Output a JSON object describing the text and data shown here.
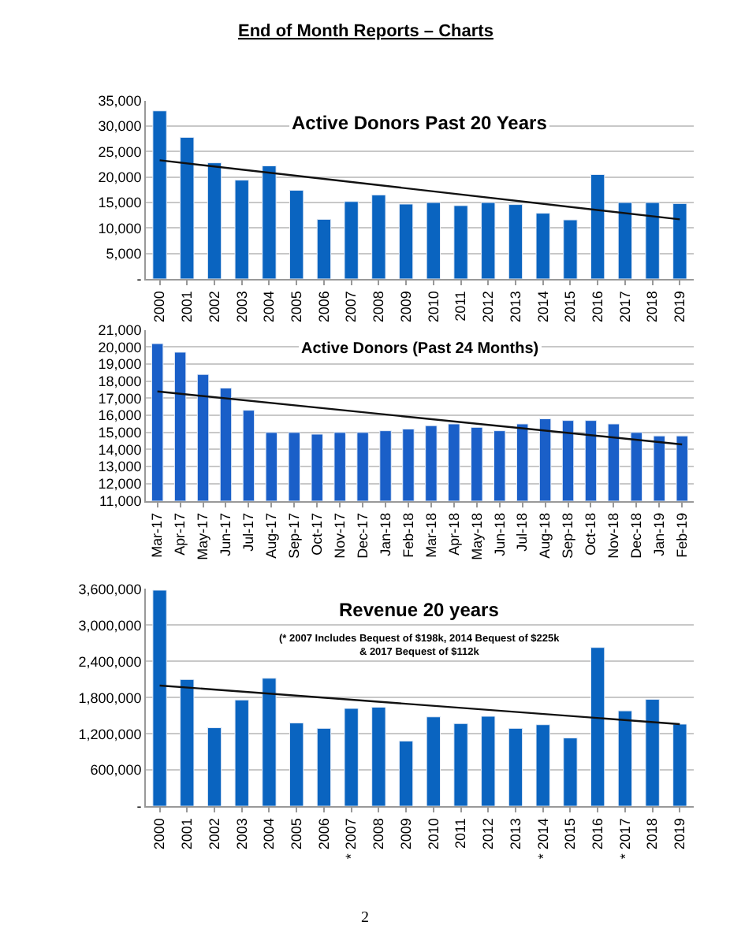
{
  "chart_data": [
    {
      "type": "bar",
      "title": "Active Donors Past 20 Years",
      "annotations": [
        "End of Month Reports – Charts"
      ],
      "categories": [
        "2000",
        "2001",
        "2002",
        "2003",
        "2004",
        "2005",
        "2006",
        "2007",
        "2008",
        "2009",
        "2010",
        "2011",
        "2012",
        "2013",
        "2014",
        "2015",
        "2016",
        "2017",
        "2018",
        "2019"
      ],
      "series": [
        {
          "color": "#0a64c0",
          "values": [
            33000,
            27800,
            22800,
            19400,
            22200,
            17400,
            11700,
            15200,
            16500,
            14700,
            15000,
            14400,
            15000,
            14600,
            12900,
            11600,
            20500,
            15000,
            15000,
            14800
          ]
        },
        {
          "type": "line",
          "color": "#111111",
          "values": [
            23300,
            null,
            null,
            null,
            null,
            null,
            null,
            null,
            null,
            null,
            null,
            null,
            null,
            null,
            null,
            null,
            null,
            null,
            null,
            11700
          ]
        }
      ],
      "ylim": [
        0,
        35000
      ],
      "yticks": [
        {
          "value": 0,
          "label": "-"
        },
        {
          "value": 5000,
          "label": "5,000"
        },
        {
          "value": 10000,
          "label": "10,000"
        },
        {
          "value": 15000,
          "label": "15,000"
        },
        {
          "value": 20000,
          "label": "20,000"
        },
        {
          "value": 25000,
          "label": "25,000"
        },
        {
          "value": 30000,
          "label": "30,000"
        },
        {
          "value": 35000,
          "label": "35,000"
        }
      ],
      "grid": "y"
    },
    {
      "type": "bar",
      "title": "Active Donors (Past 24 Months)",
      "categories": [
        "Mar-17",
        "Apr-17",
        "May-17",
        "Jun-17",
        "Jul-17",
        "Aug-17",
        "Sep-17",
        "Oct-17",
        "Nov-17",
        "Dec-17",
        "Jan-18",
        "Feb-18",
        "Mar-18",
        "Apr-18",
        "May-18",
        "Jun-18",
        "Jul-18",
        "Aug-18",
        "Sep-18",
        "Oct-18",
        "Nov-18",
        "Dec-18",
        "Jan-19",
        "Feb-19"
      ],
      "series": [
        {
          "color": "#1a5fc8",
          "values": [
            20200,
            19700,
            18400,
            17600,
            16300,
            15000,
            15000,
            14900,
            15000,
            15000,
            15100,
            15200,
            15400,
            15500,
            15300,
            15100,
            15500,
            15800,
            15700,
            15700,
            15500,
            15000,
            14800,
            14800
          ]
        },
        {
          "type": "line",
          "color": "#111111",
          "values": [
            17400,
            null,
            null,
            null,
            null,
            null,
            null,
            null,
            null,
            null,
            null,
            null,
            null,
            null,
            null,
            null,
            null,
            null,
            null,
            null,
            null,
            null,
            null,
            14300
          ]
        }
      ],
      "ylim": [
        11000,
        21000
      ],
      "yticks": [
        {
          "value": 11000,
          "label": "11,000"
        },
        {
          "value": 12000,
          "label": "12,000"
        },
        {
          "value": 13000,
          "label": "13,000"
        },
        {
          "value": 14000,
          "label": "14,000"
        },
        {
          "value": 15000,
          "label": "15,000"
        },
        {
          "value": 16000,
          "label": "16,000"
        },
        {
          "value": 17000,
          "label": "17,000"
        },
        {
          "value": 18000,
          "label": "18,000"
        },
        {
          "value": 19000,
          "label": "19,000"
        },
        {
          "value": 20000,
          "label": "20,000"
        },
        {
          "value": 21000,
          "label": "21,000"
        }
      ],
      "grid": "y"
    },
    {
      "type": "bar",
      "title": "Revenue 20 years",
      "subtitle": "(* 2007 Includes Bequest of $198k, 2014 Bequest of $225k & 2017 Bequest of $112k",
      "annotations": [
        "2"
      ],
      "categories": [
        "2000",
        "2001",
        "2002",
        "2003",
        "2004",
        "2005",
        "2006",
        "* 2007",
        "2008",
        "2009",
        "2010",
        "2011",
        "2012",
        "2013",
        "* 2014",
        "2015",
        "2016",
        "* 2017",
        "2018",
        "2019"
      ],
      "series": [
        {
          "color": "#0a64c0",
          "values": [
            3580000,
            2100000,
            1300000,
            1760000,
            2120000,
            1380000,
            1290000,
            1620000,
            1640000,
            1080000,
            1480000,
            1370000,
            1490000,
            1290000,
            1350000,
            1130000,
            2630000,
            1580000,
            1770000,
            1360000
          ]
        },
        {
          "type": "line",
          "color": "#111111",
          "values": [
            2000000,
            null,
            null,
            null,
            null,
            null,
            null,
            null,
            null,
            null,
            null,
            null,
            null,
            null,
            null,
            null,
            null,
            null,
            null,
            1360000
          ]
        }
      ],
      "ylim": [
        0,
        3600000
      ],
      "yticks": [
        {
          "value": 0,
          "label": "-"
        },
        {
          "value": 600000,
          "label": "600,000"
        },
        {
          "value": 1200000,
          "label": "1,200,000"
        },
        {
          "value": 1800000,
          "label": "1,800,000"
        },
        {
          "value": 2400000,
          "label": "2,400,000"
        },
        {
          "value": 3000000,
          "label": "3,000,000"
        },
        {
          "value": 3600000,
          "label": "3,600,000"
        }
      ],
      "grid": "y"
    }
  ]
}
